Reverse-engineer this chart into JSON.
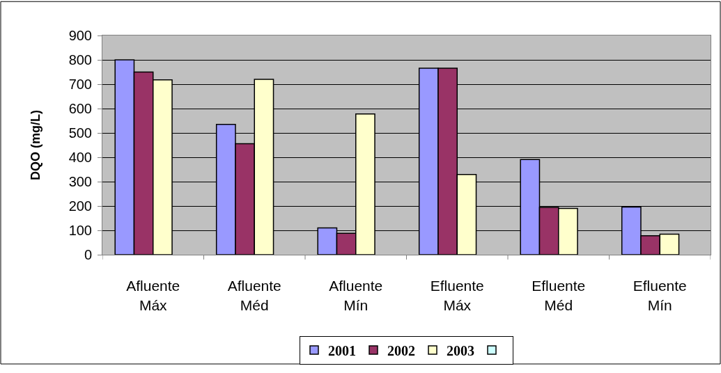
{
  "chart_data": {
    "type": "bar",
    "ylabel": "DQO (mg/L)",
    "categories": [
      "Afluente Máx",
      "Afluente Méd",
      "Afluente Mín",
      "Efluente Máx",
      "Efluente Méd",
      "Efluente Mín"
    ],
    "series": [
      {
        "name": "2001",
        "color": "#9999ff",
        "values": [
          800,
          535,
          110,
          766,
          391,
          196
        ]
      },
      {
        "name": "2002",
        "color": "#993366",
        "values": [
          750,
          456,
          88,
          766,
          194,
          78
        ]
      },
      {
        "name": "2003",
        "color": "#ffffcc",
        "values": [
          718,
          720,
          578,
          329,
          190,
          84
        ]
      },
      {
        "color": "#ccffff",
        "values": [
          null,
          null,
          null,
          null,
          null,
          null
        ]
      }
    ],
    "ylim": [
      0,
      900
    ],
    "yticks": [
      0,
      100,
      200,
      300,
      400,
      500,
      600,
      700,
      800,
      900
    ],
    "grid": "y",
    "legend": "bottom"
  }
}
